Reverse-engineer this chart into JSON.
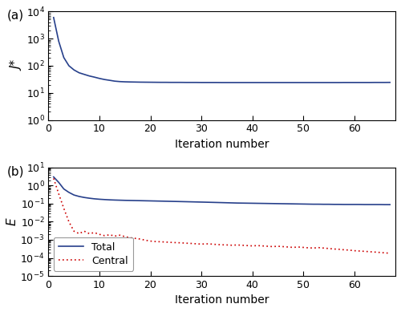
{
  "top_panel": {
    "label": "(a)",
    "ylabel": "J*",
    "xlabel": "Iteration number",
    "ylim": [
      1.0,
      10000.0
    ],
    "xlim": [
      0,
      68
    ],
    "xticks": [
      0,
      10,
      20,
      30,
      40,
      50,
      60
    ],
    "yticks_log": [
      0,
      2,
      4
    ],
    "color": "#27408B",
    "linewidth": 1.2
  },
  "bottom_panel": {
    "label": "(b)",
    "ylabel": "E",
    "xlabel": "Iteration number",
    "ylim": [
      1e-05,
      10.0
    ],
    "xlim": [
      0,
      68
    ],
    "xticks": [
      0,
      10,
      20,
      30,
      40,
      50,
      60
    ],
    "yticks_log": [
      -5,
      -3,
      -1,
      1
    ],
    "total_color": "#27408B",
    "central_color": "#CC0000",
    "linewidth": 1.2
  },
  "figsize": [
    5.0,
    3.89
  ],
  "dpi": 100
}
